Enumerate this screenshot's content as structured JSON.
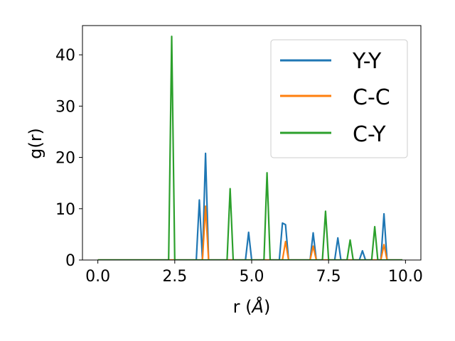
{
  "chart_data": {
    "type": "line",
    "xlabel_main": "r (",
    "xlabel_unit": "Å",
    "xlabel_close": ")",
    "ylabel": "g(r)",
    "xlim": [
      -0.5,
      10.5
    ],
    "ylim": [
      0,
      45.7
    ],
    "xticks": [
      0.0,
      2.5,
      5.0,
      7.5,
      10.0
    ],
    "xtick_labels": [
      "0.0",
      "2.5",
      "5.0",
      "7.5",
      "10.0"
    ],
    "yticks": [
      0,
      10,
      20,
      30,
      40
    ],
    "ytick_labels": [
      "0",
      "10",
      "20",
      "30",
      "40"
    ],
    "grid": false,
    "legend_position": "top-right",
    "series": [
      {
        "name": "Y-Y",
        "color": "#1f77b4",
        "points": [
          [
            0,
            0
          ],
          [
            3.2,
            0
          ],
          [
            3.3,
            11.7
          ],
          [
            3.4,
            0
          ],
          [
            3.5,
            20.8
          ],
          [
            3.6,
            0
          ],
          [
            4.8,
            0
          ],
          [
            4.9,
            5.4
          ],
          [
            5.0,
            0
          ],
          [
            5.9,
            0
          ],
          [
            6.0,
            7.2
          ],
          [
            6.1,
            6.9
          ],
          [
            6.2,
            0
          ],
          [
            6.9,
            0
          ],
          [
            7.0,
            5.3
          ],
          [
            7.1,
            0
          ],
          [
            7.7,
            0
          ],
          [
            7.8,
            4.3
          ],
          [
            7.9,
            0
          ],
          [
            8.5,
            0
          ],
          [
            8.6,
            1.8
          ],
          [
            8.7,
            0
          ],
          [
            9.2,
            0
          ],
          [
            9.3,
            9.0
          ],
          [
            9.4,
            0
          ],
          [
            9.9,
            0
          ]
        ]
      },
      {
        "name": "C-C",
        "color": "#ff7f0e",
        "points": [
          [
            0,
            0
          ],
          [
            3.4,
            0
          ],
          [
            3.5,
            10.5
          ],
          [
            3.6,
            0
          ],
          [
            6.0,
            0
          ],
          [
            6.1,
            3.6
          ],
          [
            6.2,
            0
          ],
          [
            6.9,
            0
          ],
          [
            7.0,
            2.7
          ],
          [
            7.1,
            0
          ],
          [
            9.2,
            0
          ],
          [
            9.3,
            3.0
          ],
          [
            9.4,
            0
          ],
          [
            9.9,
            0
          ]
        ]
      },
      {
        "name": "C-Y",
        "color": "#2ca02c",
        "points": [
          [
            0,
            0
          ],
          [
            2.3,
            0
          ],
          [
            2.4,
            43.6
          ],
          [
            2.5,
            0
          ],
          [
            4.2,
            0
          ],
          [
            4.3,
            13.9
          ],
          [
            4.4,
            0
          ],
          [
            5.4,
            0
          ],
          [
            5.5,
            17.0
          ],
          [
            5.6,
            0
          ],
          [
            7.3,
            0
          ],
          [
            7.4,
            9.5
          ],
          [
            7.5,
            0
          ],
          [
            8.1,
            0
          ],
          [
            8.2,
            3.9
          ],
          [
            8.3,
            0
          ],
          [
            8.9,
            0
          ],
          [
            9.0,
            6.5
          ],
          [
            9.1,
            0
          ],
          [
            9.9,
            0
          ]
        ]
      }
    ]
  }
}
